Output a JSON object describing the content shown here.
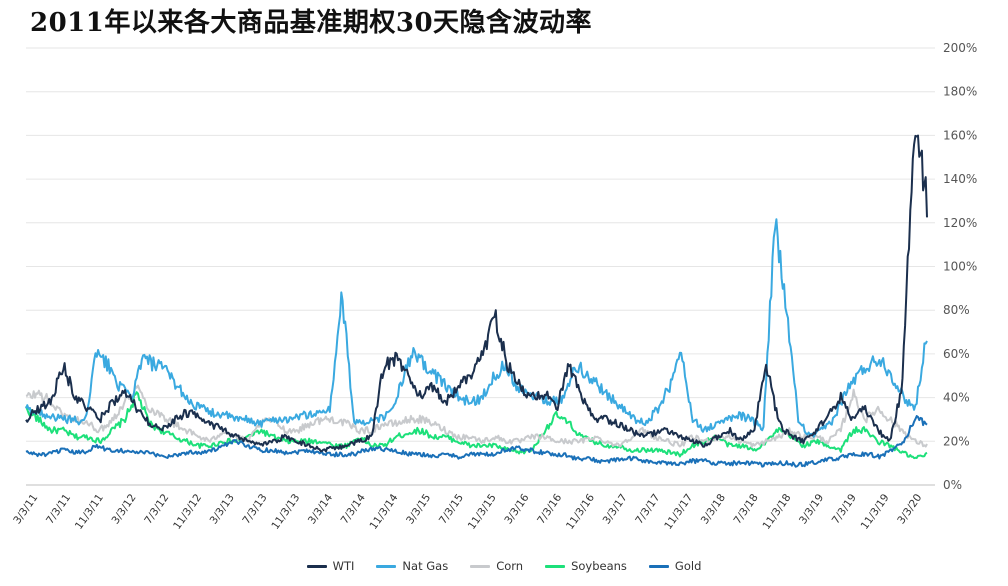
{
  "chart_data": {
    "type": "line",
    "title": "2011年以来各大商品基准期权30天隐含波动率",
    "xlabel": "",
    "ylabel": "",
    "ylim": [
      0,
      200
    ],
    "y_ticks": [
      "0%",
      "20%",
      "40%",
      "60%",
      "80%",
      "100%",
      "120%",
      "140%",
      "160%",
      "180%",
      "200%"
    ],
    "x_ticks": [
      "3/3/11",
      "7/3/11",
      "11/3/11",
      "3/3/12",
      "7/3/12",
      "11/3/12",
      "3/3/13",
      "7/3/13",
      "11/3/13",
      "3/3/14",
      "7/3/14",
      "11/3/14",
      "3/3/15",
      "7/3/15",
      "11/3/15",
      "3/3/16",
      "7/3/16",
      "11/3/16",
      "3/3/17",
      "7/3/17",
      "11/3/17",
      "3/3/18",
      "7/3/18",
      "11/3/18",
      "3/3/19",
      "7/3/19",
      "11/3/19",
      "3/3/20"
    ],
    "grid": true,
    "legend_position": "bottom",
    "series": [
      {
        "name": "WTI",
        "color": "#1b2f4d",
        "values": [
          30,
          35,
          38,
          55,
          40,
          35,
          30,
          38,
          42,
          35,
          28,
          25,
          30,
          33,
          32,
          28,
          25,
          22,
          20,
          18,
          20,
          22,
          20,
          18,
          16,
          17,
          18,
          20,
          22,
          55,
          58,
          50,
          40,
          45,
          38,
          45,
          50,
          60,
          78,
          55,
          45,
          40,
          42,
          35,
          55,
          40,
          30,
          30,
          28,
          25,
          22,
          24,
          25,
          22,
          20,
          18,
          22,
          25,
          20,
          26,
          55,
          28,
          22,
          20,
          25,
          32,
          40,
          30,
          35,
          25,
          20,
          45,
          170,
          130
        ]
      },
      {
        "name": "Nat Gas",
        "color": "#3aa9e0",
        "values": [
          35,
          33,
          32,
          30,
          30,
          28,
          60,
          55,
          45,
          40,
          58,
          55,
          52,
          45,
          38,
          35,
          33,
          32,
          30,
          30,
          28,
          30,
          30,
          31,
          32,
          33,
          35,
          88,
          30,
          28,
          30,
          32,
          45,
          60,
          55,
          50,
          45,
          40,
          38,
          40,
          50,
          55,
          45,
          42,
          40,
          38,
          40,
          55,
          50,
          45,
          40,
          35,
          30,
          28,
          35,
          45,
          60,
          30,
          25,
          28,
          30,
          32,
          30,
          25,
          120,
          80,
          30,
          22,
          25,
          30,
          42,
          50,
          55,
          58,
          50,
          40,
          35,
          70
        ]
      },
      {
        "name": "Corn",
        "color": "#c8cacd",
        "values": [
          40,
          42,
          38,
          32,
          30,
          28,
          25,
          30,
          38,
          45,
          35,
          32,
          28,
          25,
          22,
          20,
          25,
          22,
          20,
          28,
          30,
          25,
          25,
          28,
          30,
          30,
          28,
          25,
          25,
          28,
          28,
          30,
          30,
          28,
          25,
          22,
          22,
          20,
          22,
          20,
          20,
          22,
          22,
          20,
          20,
          20,
          22,
          20,
          18,
          22,
          25,
          22,
          20,
          18,
          22,
          20,
          22,
          22,
          20,
          18,
          20,
          22,
          25,
          22,
          22,
          20,
          25,
          42,
          30,
          35,
          30,
          25,
          20,
          18
        ]
      },
      {
        "name": "Soybeans",
        "color": "#1de07a",
        "values": [
          35,
          30,
          25,
          25,
          22,
          22,
          20,
          25,
          30,
          42,
          28,
          25,
          22,
          20,
          18,
          18,
          20,
          20,
          22,
          25,
          22,
          20,
          20,
          20,
          20,
          18,
          18,
          22,
          18,
          18,
          22,
          24,
          25,
          22,
          22,
          20,
          18,
          18,
          18,
          16,
          15,
          16,
          25,
          32,
          28,
          22,
          20,
          18,
          18,
          16,
          16,
          16,
          15,
          14,
          18,
          20,
          22,
          18,
          18,
          16,
          20,
          25,
          22,
          18,
          20,
          18,
          16,
          25,
          25,
          20,
          18,
          15,
          12,
          14
        ]
      },
      {
        "name": "Gold",
        "color": "#1a70b8",
        "values": [
          15,
          14,
          14,
          16,
          15,
          15,
          18,
          16,
          16,
          15,
          15,
          14,
          13,
          14,
          15,
          15,
          16,
          18,
          20,
          18,
          16,
          16,
          15,
          15,
          16,
          15,
          14,
          14,
          14,
          16,
          17,
          16,
          15,
          14,
          14,
          13,
          14,
          13,
          14,
          14,
          14,
          16,
          17,
          16,
          15,
          14,
          14,
          12,
          12,
          11,
          11,
          12,
          12,
          11,
          10,
          10,
          10,
          11,
          11,
          10,
          10,
          10,
          10,
          9,
          10,
          10,
          9,
          10,
          11,
          12,
          13,
          14,
          14,
          13,
          16,
          20,
          30,
          28
        ]
      }
    ]
  }
}
